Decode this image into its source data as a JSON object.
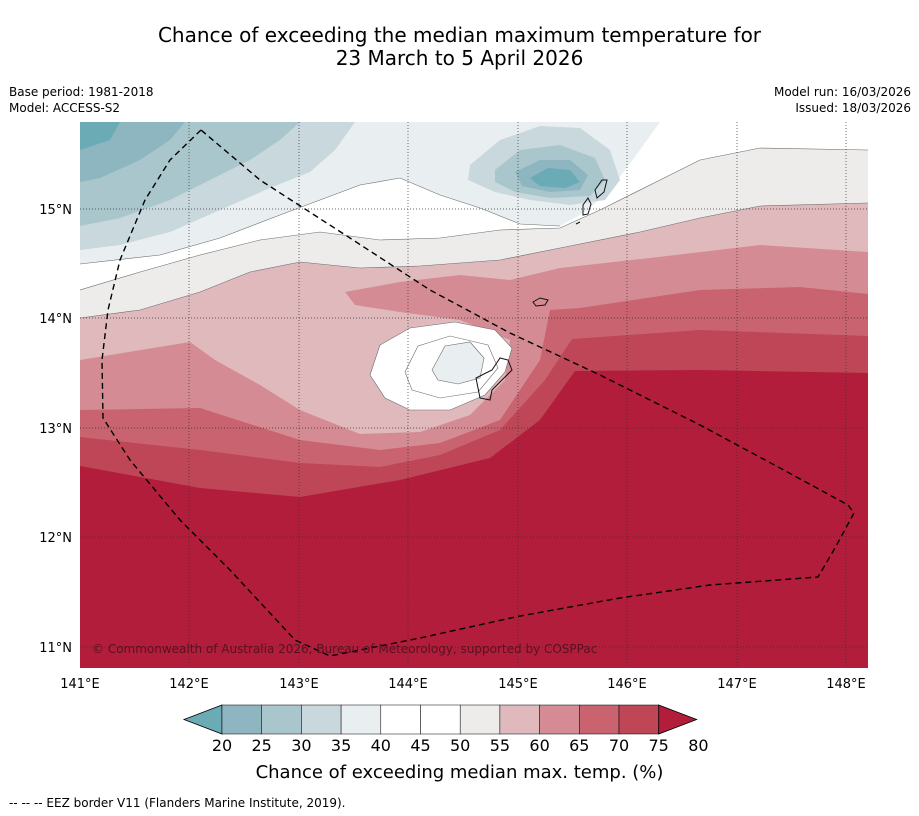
{
  "title": {
    "line1": "Chance of exceeding the median maximum temperature for",
    "line2": "23 March to 5 April 2026"
  },
  "meta_left": {
    "base_period": "Base period: 1981-2018",
    "model": "Model: ACCESS-S2"
  },
  "meta_right": {
    "model_run": "Model run: 16/03/2026",
    "issued": "Issued: 18/03/2026"
  },
  "map": {
    "lat_labels": [
      "15°N",
      "14°N",
      "13°N",
      "12°N",
      "11°N"
    ],
    "lon_labels": [
      "141°E",
      "142°E",
      "143°E",
      "144°E",
      "145°E",
      "146°E",
      "147°E",
      "148°E"
    ],
    "copyright": "© Commonwealth of Australia 2026, Bureau of Meteorology, supported by COSPPac"
  },
  "colorbar": {
    "ticks": [
      "20",
      "25",
      "30",
      "35",
      "40",
      "45",
      "50",
      "55",
      "60",
      "65",
      "70",
      "75",
      "80"
    ],
    "colors": [
      "#6aabb5",
      "#8db6c0",
      "#a9c6cc",
      "#c8d8dd",
      "#e9eff1",
      "#ffffff",
      "#ffffff",
      "#eeeceb",
      "#e0b9bd",
      "#d58b93",
      "#c8636f",
      "#be4657",
      "#b11d3a"
    ],
    "title": "Chance of exceeding median max. temp. (%)"
  },
  "footer": "--  --  -- EEZ border V11 (Flanders Marine Institute, 2019)."
}
